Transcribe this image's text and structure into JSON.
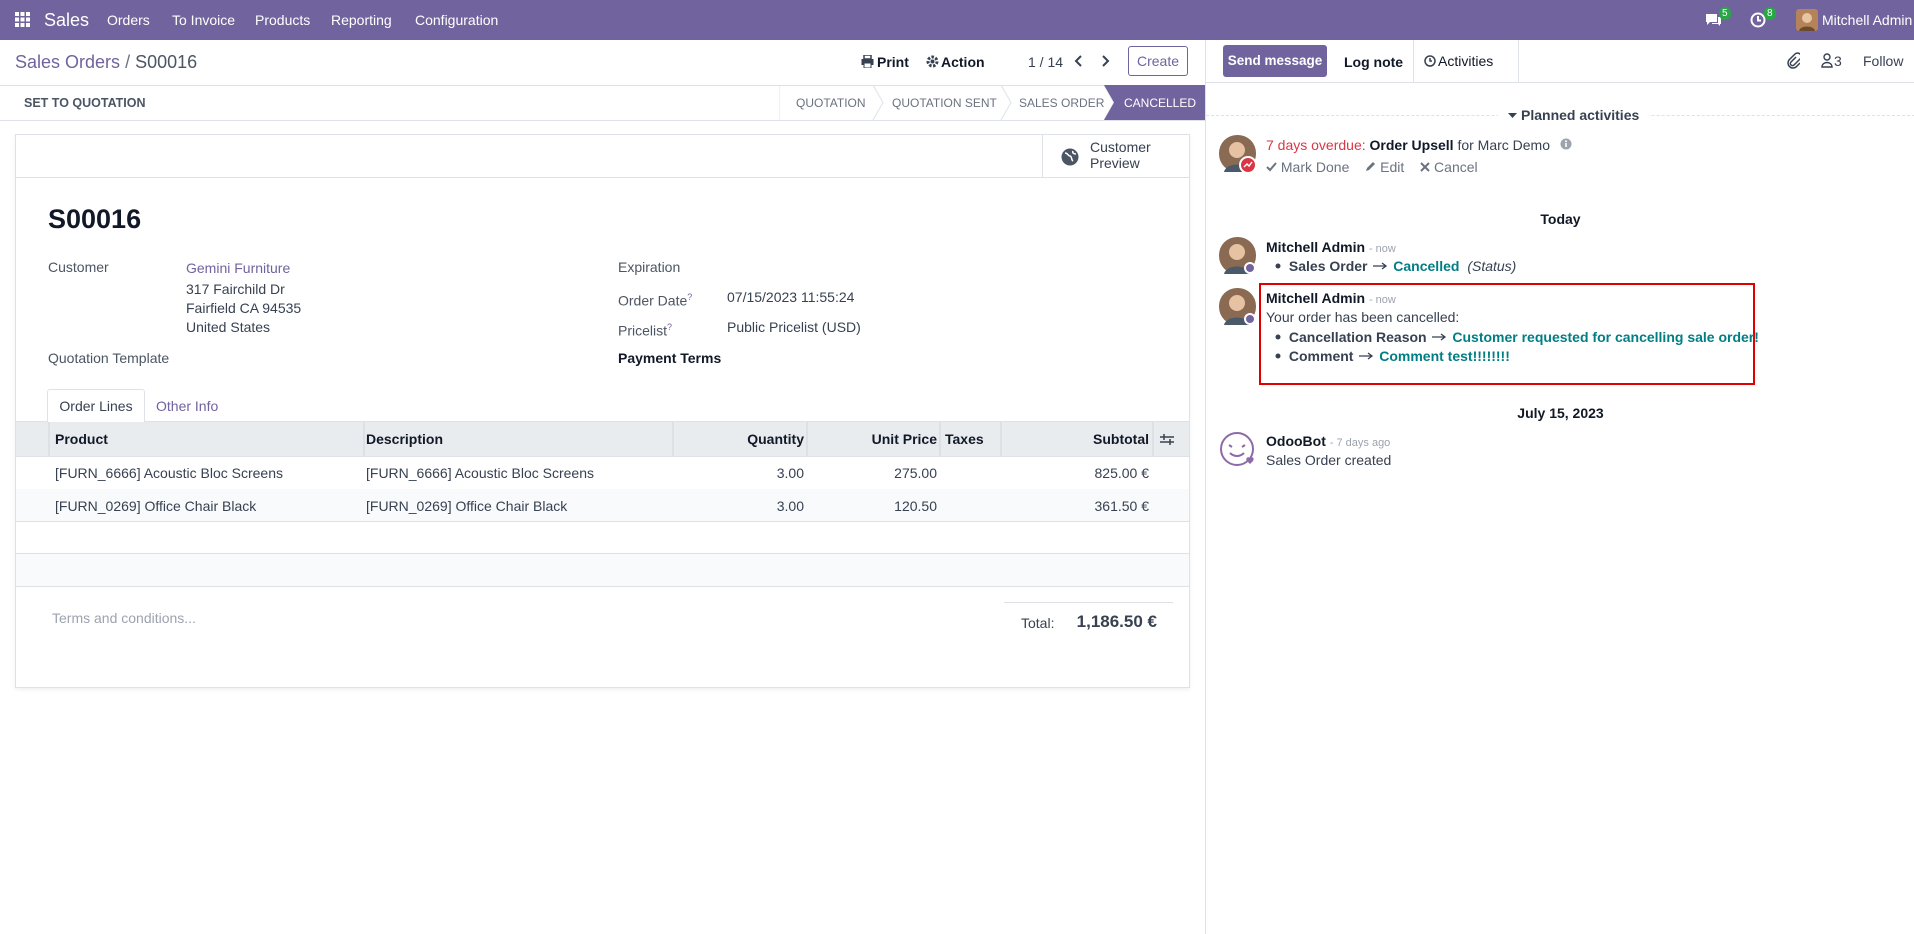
{
  "navbar": {
    "app": "Sales",
    "menu": [
      "Orders",
      "To Invoice",
      "Products",
      "Reporting",
      "Configuration"
    ],
    "messages_badge": 5,
    "activities_badge": 8,
    "user": "Mitchell Admin"
  },
  "control_panel": {
    "breadcrumb": [
      "Sales Orders",
      "S00016"
    ],
    "separator": "/",
    "print": "Print",
    "action": "Action",
    "pager": "1 / 14",
    "create": "Create"
  },
  "statusbar": {
    "button": "SET TO QUOTATION",
    "stages": [
      "QUOTATION",
      "QUOTATION SENT",
      "SALES ORDER",
      "CANCELLED"
    ]
  },
  "form": {
    "customer_preview": "Customer Preview",
    "name": "S00016",
    "customer": {
      "label": "Customer",
      "name": "Gemini Furniture",
      "address": [
        "317 Fairchild Dr",
        "Fairfield CA 94535",
        "United States"
      ]
    },
    "quotation_template": "Quotation Template",
    "expiration": "Expiration",
    "order_date": {
      "label": "Order Date",
      "help": "?",
      "value": "07/15/2023 11:55:24"
    },
    "pricelist": {
      "label": "Pricelist",
      "help": "?",
      "value": "Public Pricelist (USD)"
    },
    "payment_terms": "Payment Terms",
    "tabs": [
      "Order Lines",
      "Other Info"
    ],
    "table": {
      "headers": [
        "Product",
        "Description",
        "Quantity",
        "Unit Price",
        "Taxes",
        "Subtotal"
      ],
      "rows": [
        [
          "[FURN_6666] Acoustic Bloc Screens",
          "[FURN_6666] Acoustic Bloc Screens",
          "3.00",
          "275.00",
          "",
          "825.00 €"
        ],
        [
          "[FURN_0269] Office Chair Black",
          "[FURN_0269] Office Chair Black",
          "3.00",
          "120.50",
          "",
          "361.50 €"
        ]
      ]
    },
    "terms_placeholder": "Terms and conditions...",
    "total": {
      "label": "Total:",
      "value": "1,186.50 €"
    }
  },
  "chatter": {
    "send_message": "Send message",
    "log_note": "Log note",
    "activities": "Activities",
    "followers_count": 3,
    "follow": "Follow",
    "planned_activities": "Planned activities",
    "activity": {
      "overdue": "7 days overdue:",
      "summary": "Order Upsell",
      "assignee": "for Marc Demo",
      "actions": [
        "Mark Done",
        "Edit",
        "Cancel"
      ]
    },
    "separators": [
      "Today",
      "July 15, 2023"
    ],
    "messages": [
      {
        "author": "Mitchell Admin",
        "time": "- now",
        "field": "Sales Order",
        "value": "Cancelled",
        "field_name": "(Status)"
      },
      {
        "author": "Mitchell Admin",
        "time": "- now",
        "body": "Your order has been cancelled:",
        "changes": [
          {
            "label": "Cancellation Reason",
            "value": "Customer requested for cancelling sale order!"
          },
          {
            "label": "Comment",
            "value": "Comment test!!!!!!!!"
          }
        ]
      },
      {
        "author": "OdooBot",
        "time": "- 7 days ago",
        "body": "Sales Order created"
      }
    ]
  }
}
